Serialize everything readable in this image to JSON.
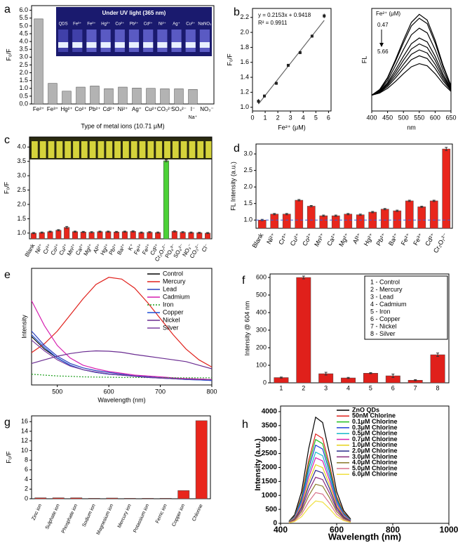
{
  "chart_data": [
    {
      "type": "bar",
      "panel_label": "a",
      "ylabel": "F₀/F",
      "xlabel": "Type of metal ions (10.71 μM)",
      "color": "#b3b3b3",
      "categories": [
        "Fe²⁺",
        "Fe³⁺",
        "Hg²⁺",
        "Co²⁺",
        "Pb²⁺",
        "Cd²⁺",
        "Ni²⁺",
        "Ag⁺",
        "Cu²⁺",
        "CO₃²⁻",
        "SO₄²⁻",
        "I⁻",
        "NO₃⁻"
      ],
      "values": [
        5.45,
        1.32,
        0.82,
        1.08,
        1.15,
        0.98,
        1.08,
        1.02,
        1.0,
        0.97,
        0.97,
        0.93,
        null
      ],
      "x_note": "Na⁺",
      "ylim": [
        0,
        6.3
      ],
      "yticks": [
        {
          "value": 0,
          "label": "0.0"
        },
        0.5,
        {
          "value": 1,
          "label": "1.0"
        },
        1.5,
        {
          "value": 2,
          "label": "2.0"
        },
        2.5,
        {
          "value": 3,
          "label": "3.0"
        },
        3.5,
        {
          "value": 4,
          "label": "4.0"
        },
        4.5,
        {
          "value": 5,
          "label": "5.0"
        },
        5.5,
        {
          "value": 6,
          "label": "6.0"
        }
      ],
      "inset": {
        "title": "Under UV light (365 nm)",
        "labels": [
          "QDS",
          "Fe³⁺",
          "Fe²⁺",
          "Hg²⁺",
          "Co²⁺",
          "Pb²⁺",
          "Cd²⁺",
          "Ni²⁺",
          "Ag⁺",
          "Cu²⁺",
          "NaNO₃"
        ]
      }
    },
    {
      "type": "scatter",
      "panel_label": "b",
      "ylabel": "F₀/F",
      "xlabel": "Fe²⁺ (μM)",
      "color": "#222222",
      "x": [
        0.47,
        0.94,
        1.88,
        2.82,
        3.76,
        4.7,
        5.66
      ],
      "values": [
        1.08,
        1.15,
        1.32,
        1.56,
        1.73,
        1.95,
        2.22
      ],
      "errors": [
        0.03,
        0.02,
        0.02,
        0.02,
        0.02,
        0.02,
        0.03
      ],
      "fit": {
        "slope": 0.2153,
        "intercept": 0.9418
      },
      "equation": "y = 0.2153x + 0.9418",
      "r2": "R² = 0.9911",
      "xlim": [
        0,
        6.2
      ],
      "xticks": [
        0,
        1,
        2,
        3,
        4,
        5,
        6
      ],
      "ylim": [
        0.95,
        2.32
      ],
      "yticks": [
        {
          "value": 1,
          "label": "1.0"
        },
        1.2,
        1.4,
        1.6,
        1.8,
        {
          "value": 2,
          "label": "2.0"
        },
        2.2
      ]
    },
    {
      "type": "line",
      "ylabel": "FL",
      "xlabel": "nm",
      "legend_title": "Fe²⁺ (μM)",
      "range_start": "0.47",
      "range_end": "5.66",
      "x": [
        400,
        425,
        450,
        475,
        500,
        525,
        550,
        575,
        600,
        625,
        650
      ],
      "series": [
        {
          "color": "#000000",
          "values": [
            80,
            109,
            170,
            260,
            359,
            449,
            490,
            461,
            359,
            232,
            129
          ]
        },
        {
          "color": "#000000",
          "values": [
            80,
            107,
            166,
            252,
            345,
            431,
            470,
            443,
            345,
            224,
            127
          ]
        },
        {
          "color": "#000000",
          "values": [
            80,
            104,
            155,
            230,
            311,
            386,
            420,
            396,
            311,
            206,
            121
          ]
        },
        {
          "color": "#000000",
          "values": [
            80,
            100,
            144,
            208,
            277,
            341,
            370,
            350,
            277,
            187,
            115
          ]
        },
        {
          "color": "#000000",
          "values": [
            80,
            98,
            137,
            194,
            257,
            314,
            340,
            322,
            257,
            176,
            111
          ]
        },
        {
          "color": "#000000",
          "values": [
            80,
            96,
            131,
            181,
            236,
            287,
            310,
            294,
            236,
            165,
            108
          ]
        },
        {
          "color": "#000000",
          "values": [
            80,
            94,
            124,
            168,
            216,
            260,
            280,
            266,
            216,
            154,
            104
          ]
        },
        {
          "color": "#000000",
          "values": [
            80,
            91,
            115,
            150,
            189,
            224,
            240,
            229,
            189,
            139,
            99
          ]
        }
      ],
      "xlim": [
        400,
        650
      ],
      "xticks": [
        400,
        450,
        500,
        550,
        600,
        650
      ],
      "ylim": [
        0,
        520
      ]
    },
    {
      "type": "bar",
      "panel_label": "c",
      "ylabel": "F₀/F",
      "color": "#e8261c",
      "categories": [
        "Blank",
        "Ni²⁺",
        "Cr³⁺",
        "Co²⁺",
        "Cu²⁺",
        "Mn²⁺",
        "Ca²⁺",
        "Mg²⁺",
        "Al³⁺",
        "Hg²⁺",
        "Pb²⁺",
        "Ba²⁺",
        "K⁺",
        "Fe³⁺",
        "Fe²⁺",
        "Cd²⁺",
        "Cr₂O₇²⁻",
        "PO₄³⁻",
        "SO₄²⁻",
        "NO₃⁻",
        "CO₃²⁻",
        "Cl⁻"
      ],
      "values": [
        1.0,
        1.02,
        1.05,
        1.1,
        1.2,
        1.05,
        1.04,
        1.03,
        1.05,
        1.05,
        1.04,
        1.05,
        1.06,
        1.02,
        1.03,
        1.02,
        3.52,
        1.06,
        1.03,
        1.02,
        1.01,
        1.0
      ],
      "errors": [
        0.02,
        0.02,
        0.02,
        0.02,
        0.03,
        0.02,
        0.02,
        0.02,
        0.02,
        0.02,
        0.02,
        0.02,
        0.02,
        0.02,
        0.02,
        0.02,
        0.03,
        0.02,
        0.02,
        0.02,
        0.02,
        0.02
      ],
      "colors": [
        "#e8261c",
        "#e8261c",
        "#e8261c",
        "#e8261c",
        "#e8261c",
        "#e8261c",
        "#e8261c",
        "#e8261c",
        "#e8261c",
        "#e8261c",
        "#e8261c",
        "#e8261c",
        "#e8261c",
        "#e8261c",
        "#e8261c",
        "#e8261c",
        "#4cd137",
        "#e8261c",
        "#e8261c",
        "#e8261c",
        "#e8261c",
        "#e8261c"
      ],
      "ylim": [
        0.8,
        4.35
      ],
      "yticks": [
        {
          "value": 1,
          "label": "1.0"
        },
        1.5,
        {
          "value": 2,
          "label": "2.0"
        },
        2.5,
        {
          "value": 3,
          "label": "3.0"
        },
        3.5,
        {
          "value": 4,
          "label": "4.0"
        }
      ]
    },
    {
      "type": "bar",
      "panel_label": "d",
      "ylabel": "FL Intensity (a.u.)",
      "color": "#e8261c",
      "categories": [
        "Blank",
        "Ni²⁺",
        "Cr³⁺",
        "Cu²⁺",
        "Co²⁺",
        "Mn²⁺",
        "Ca²⁺",
        "Mg²⁺",
        "Al³⁺",
        "Hg²⁺",
        "Pb²⁺",
        "Ba²⁺",
        "Fe²⁺",
        "Fe³⁺",
        "Cd²⁺",
        "Cr₂O₇²⁻"
      ],
      "values": [
        1.0,
        1.18,
        1.18,
        1.6,
        1.42,
        1.13,
        1.13,
        1.18,
        1.16,
        1.24,
        1.33,
        1.28,
        1.58,
        1.4,
        1.58,
        3.15
      ],
      "errors": [
        0.02,
        0.02,
        0.02,
        0.02,
        0.02,
        0.02,
        0.02,
        0.02,
        0.02,
        0.02,
        0.02,
        0.02,
        0.02,
        0.02,
        0.02,
        0.05
      ],
      "ref_line": 1.0,
      "ref_color": "#3b5bdb",
      "ylim": [
        0.75,
        3.3
      ],
      "yticks": [
        {
          "value": 1,
          "label": "1.0"
        },
        1.5,
        {
          "value": 2,
          "label": "2.0"
        },
        2.5,
        {
          "value": 3,
          "label": "3.0"
        }
      ]
    },
    {
      "type": "line",
      "panel_label": "e",
      "ylabel": "Intensity",
      "xlabel": "Wavelength (nm)",
      "x": [
        450,
        475,
        500,
        525,
        550,
        575,
        600,
        625,
        650,
        675,
        700,
        725,
        750,
        775,
        800
      ],
      "series": [
        {
          "name": "Control",
          "color": "#000000",
          "values": [
            270,
            200,
            150,
            110,
            85,
            70,
            60,
            55,
            50,
            45,
            40,
            38,
            35,
            33,
            30
          ]
        },
        {
          "name": "Mercury",
          "color": "#e0201b",
          "values": [
            180,
            230,
            300,
            390,
            480,
            560,
            600,
            590,
            540,
            460,
            370,
            280,
            200,
            140,
            100
          ]
        },
        {
          "name": "Lead",
          "color": "#2b3fbf",
          "values": [
            300,
            220,
            160,
            120,
            95,
            80,
            70,
            60,
            50,
            45,
            40,
            35,
            30,
            28,
            25
          ]
        },
        {
          "name": "Cadmium",
          "color": "#d61fb0",
          "values": [
            470,
            330,
            220,
            150,
            110,
            90,
            75,
            65,
            55,
            50,
            45,
            40,
            35,
            33,
            30
          ]
        },
        {
          "name": "Iron",
          "color": "#20a020",
          "style": "dotted",
          "values": [
            60,
            55,
            50,
            48,
            45,
            44,
            43,
            42,
            42,
            41,
            40,
            40,
            40,
            40,
            40
          ]
        },
        {
          "name": "Copper",
          "color": "#1f4fd6",
          "values": [
            280,
            210,
            150,
            110,
            85,
            70,
            60,
            55,
            48,
            42,
            38,
            35,
            30,
            28,
            25
          ]
        },
        {
          "name": "Nickel",
          "color": "#6a2c91",
          "values": [
            120,
            140,
            160,
            175,
            185,
            190,
            188,
            182,
            170,
            160,
            150,
            140,
            130,
            110,
            90
          ]
        },
        {
          "name": "Silver",
          "color": "#7b3fa0",
          "values": [
            250,
            190,
            140,
            105,
            85,
            72,
            62,
            55,
            48,
            42,
            38,
            35,
            32,
            30,
            28
          ]
        }
      ],
      "xlim": [
        450,
        800
      ],
      "xticks": [
        500,
        600,
        700,
        800
      ],
      "ylim": [
        0,
        650
      ]
    },
    {
      "type": "bar",
      "panel_label": "f",
      "ylabel": "Intensity @ 604 nm",
      "color": "#e0201b",
      "categories": [
        "1",
        "2",
        "3",
        "4",
        "5",
        "6",
        "7",
        "8"
      ],
      "values": [
        30,
        600,
        52,
        28,
        55,
        40,
        15,
        160
      ],
      "errors": [
        3,
        8,
        8,
        3,
        3,
        10,
        3,
        10
      ],
      "legend_entries": [
        "1 - Control",
        "2 - Mercury",
        "3 - Lead",
        "4 - Cadmium",
        "5 - Iron",
        "6 - Copper",
        "7 - Nickel",
        "8 - Silver"
      ],
      "ylim": [
        0,
        620
      ],
      "yticks": [
        0,
        100,
        200,
        300,
        400,
        500,
        600
      ]
    },
    {
      "type": "bar",
      "panel_label": "g",
      "ylabel": "F₀/F",
      "color": "#e8261c",
      "categories": [
        "Zinc ion",
        "Sulphate ion",
        "Phosphate ion",
        "Sodium ion",
        "Magnesium ion",
        "Mercury ion",
        "Potassium ion",
        "Ferric ion",
        "Copper ion",
        "Chlorine"
      ],
      "values": [
        0.2,
        0.2,
        0.2,
        0.1,
        0.15,
        0.1,
        0.1,
        0.1,
        1.7,
        16.2
      ],
      "ylim": [
        0,
        17.2
      ],
      "yticks": [
        0,
        2,
        4,
        6,
        8,
        10,
        12,
        14,
        16
      ]
    },
    {
      "type": "line",
      "panel_label": "h",
      "ylabel": "Intensity (a.u.)",
      "xlabel": "Wavelength (nm)",
      "x": [
        430,
        450,
        475,
        500,
        525,
        550,
        575,
        600,
        625,
        650
      ],
      "series": [
        {
          "name": "ZnO QDs",
          "color": "#000000",
          "values": [
            76,
            304,
            1140,
            2660,
            3800,
            3610,
            2470,
            1140,
            456,
            152
          ]
        },
        {
          "name": "50nM Chlorine",
          "color": "#e0201b",
          "values": [
            64,
            256,
            960,
            2240,
            3200,
            3040,
            2080,
            960,
            384,
            128
          ]
        },
        {
          "name": "0.1μM Chlorine",
          "color": "#22c022",
          "values": [
            60,
            240,
            900,
            2100,
            3000,
            2850,
            1950,
            900,
            360,
            120
          ]
        },
        {
          "name": "0.3μM Chlorine",
          "color": "#1f3fd6",
          "values": [
            56,
            224,
            840,
            1960,
            2800,
            2660,
            1820,
            840,
            336,
            112
          ]
        },
        {
          "name": "0.5μM Chlorine",
          "color": "#18b8c8",
          "values": [
            51,
            204,
            765,
            1785,
            2550,
            2423,
            1658,
            765,
            306,
            102
          ]
        },
        {
          "name": "0.7μM Chlorine",
          "color": "#d61fb0",
          "values": [
            47,
            188,
            705,
            1645,
            2350,
            2233,
            1528,
            705,
            282,
            94
          ]
        },
        {
          "name": "1.0μM Chlorine",
          "color": "#e6d21a",
          "values": [
            42,
            168,
            630,
            1470,
            2100,
            1995,
            1365,
            630,
            252,
            84
          ]
        },
        {
          "name": "2.0μM Chlorine",
          "color": "#2a2a8a",
          "values": [
            38,
            152,
            570,
            1330,
            1900,
            1805,
            1235,
            570,
            228,
            76
          ]
        },
        {
          "name": "3.0μM Chlorine",
          "color": "#8a2a7a",
          "values": [
            33,
            132,
            495,
            1155,
            1650,
            1568,
            1073,
            495,
            198,
            66
          ]
        },
        {
          "name": "4.0μM Chlorine",
          "color": "#8a7a2a",
          "values": [
            28,
            112,
            420,
            980,
            1400,
            1330,
            910,
            420,
            168,
            56
          ]
        },
        {
          "name": "5.0μM Chlorine",
          "color": "#d8708a",
          "values": [
            22,
            88,
            330,
            770,
            1100,
            1045,
            715,
            330,
            132,
            44
          ]
        },
        {
          "name": "6.0μM Chlorine",
          "color": "#f0e040",
          "values": [
            16,
            64,
            240,
            560,
            800,
            760,
            520,
            240,
            96,
            32
          ]
        }
      ],
      "xlim": [
        400,
        1000
      ],
      "xticks": [
        400,
        600,
        800,
        1000
      ],
      "ylim": [
        0,
        4200
      ],
      "yticks": [
        0,
        500,
        1000,
        1500,
        2000,
        2500,
        3000,
        3500,
        4000
      ]
    }
  ]
}
